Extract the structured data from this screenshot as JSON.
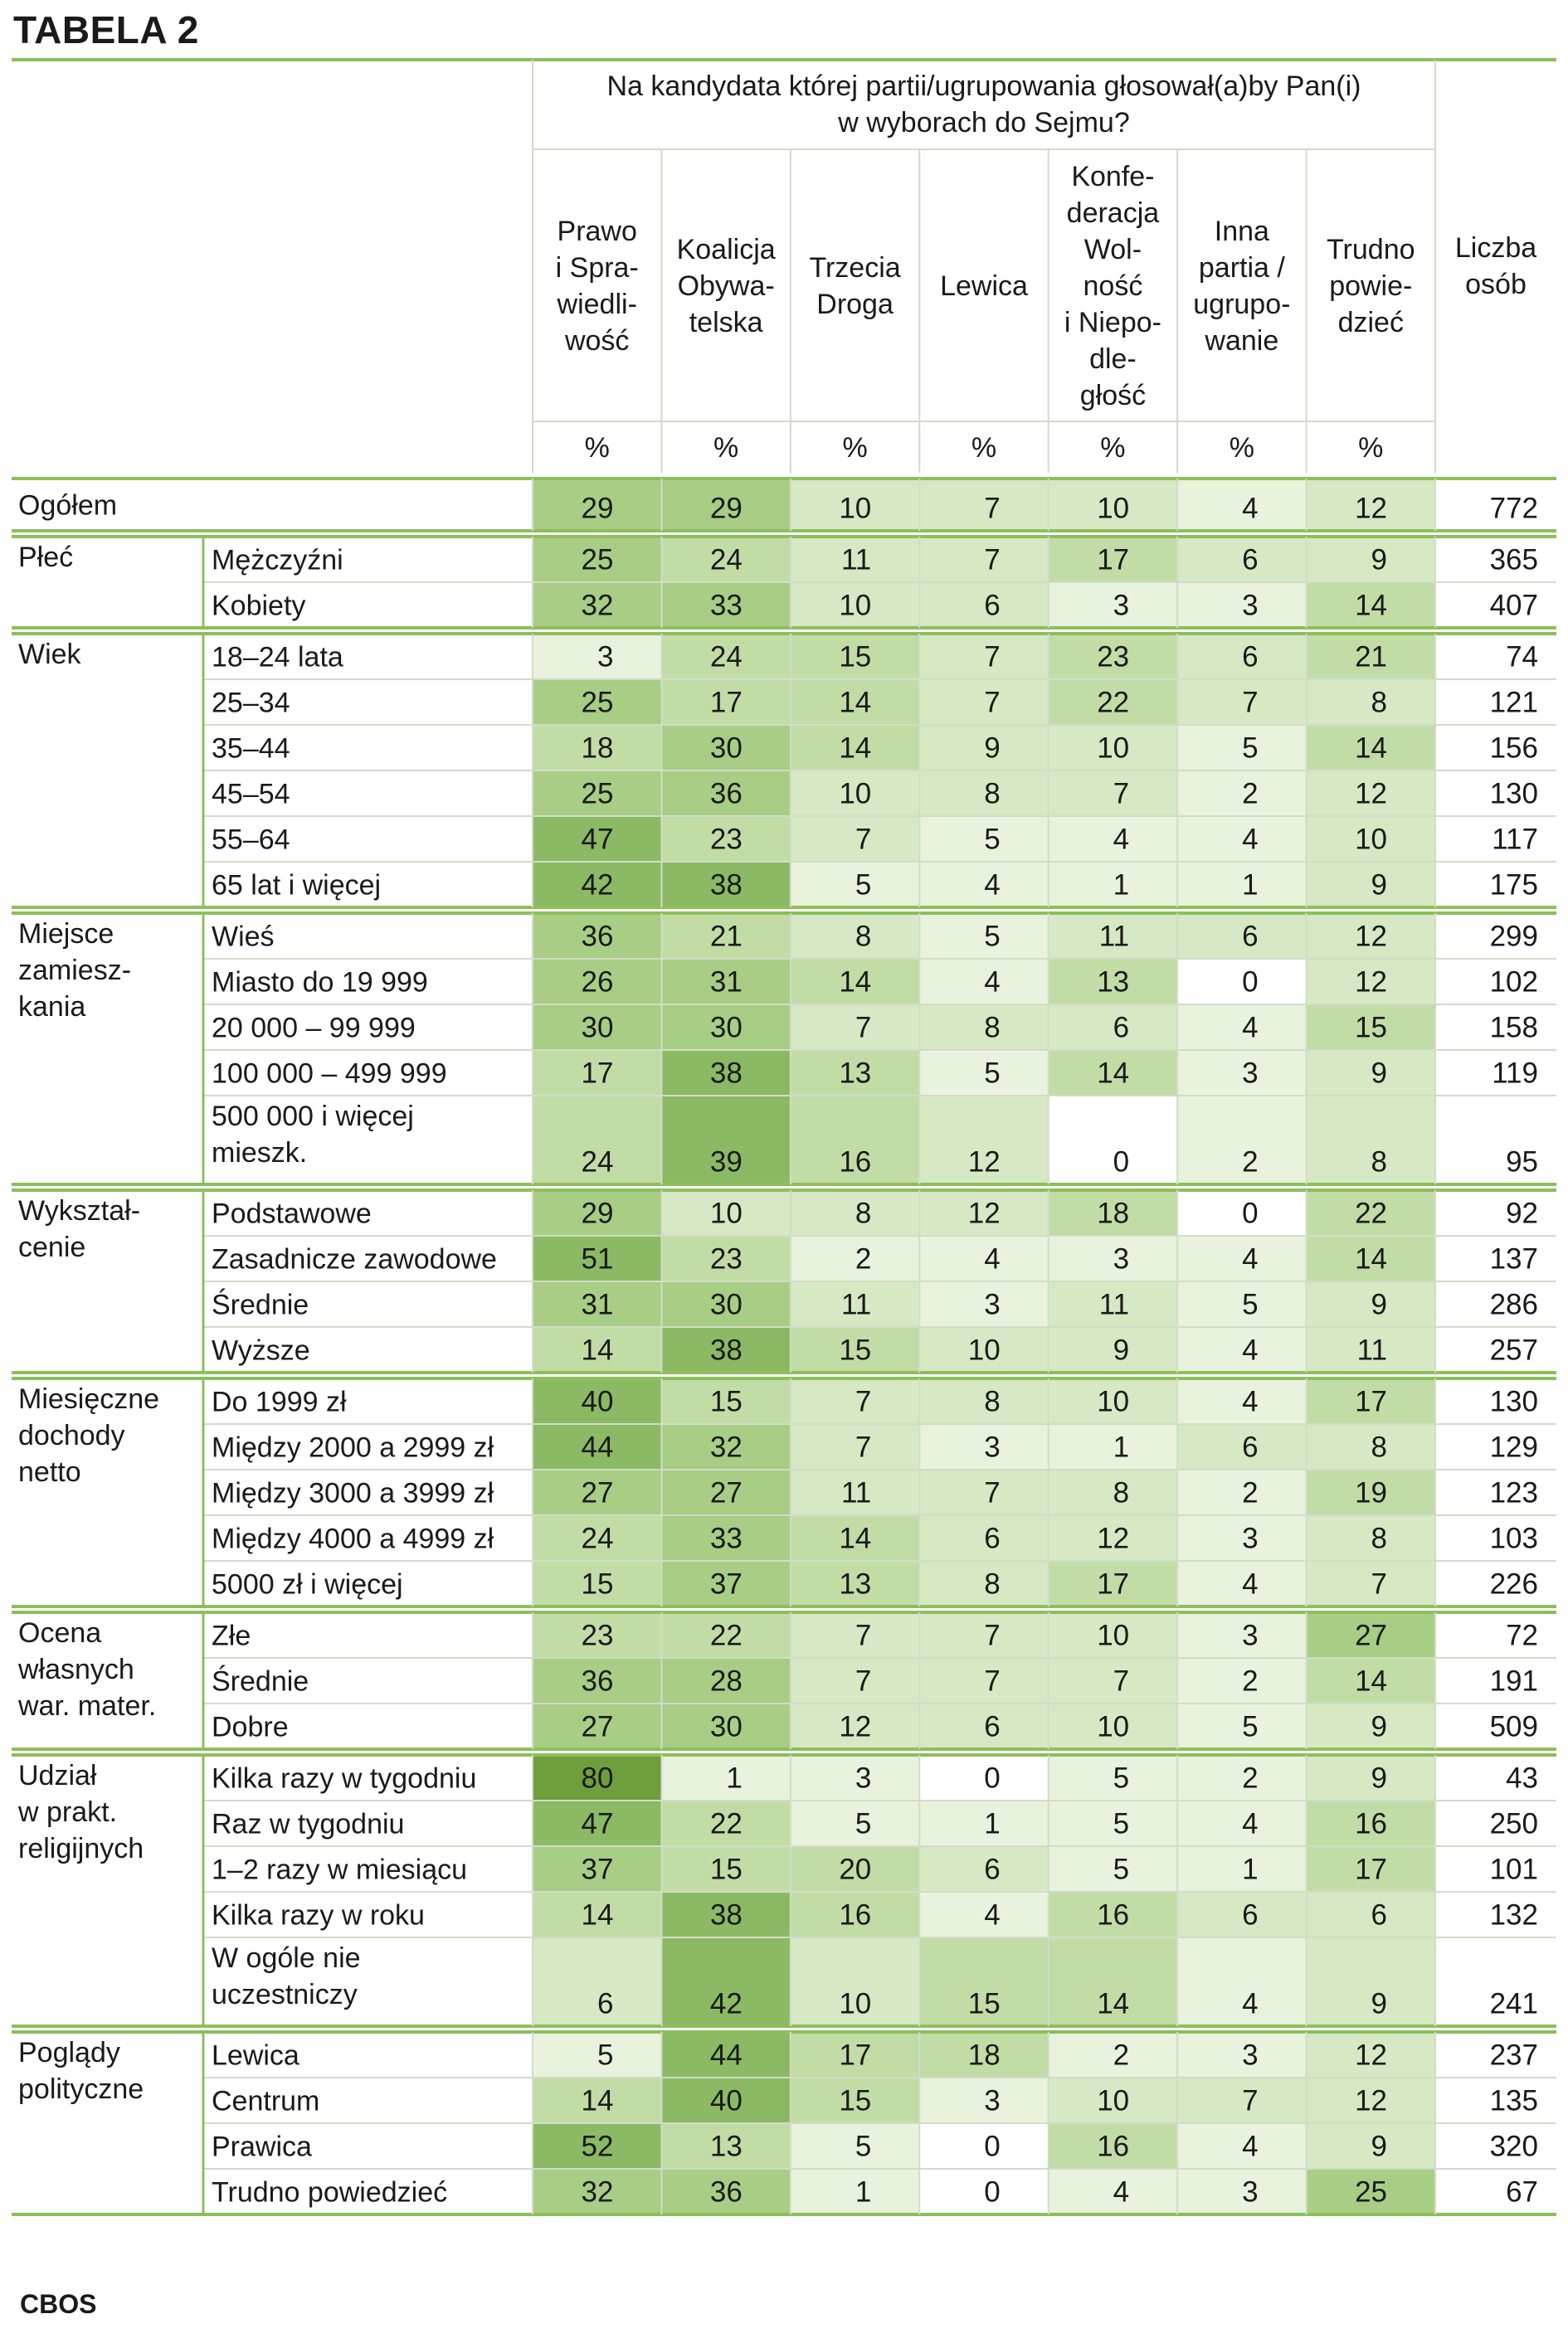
{
  "title": "TABELA 2",
  "source": "CBOS",
  "colors": {
    "rule": "#8cbf5a",
    "line": "#d2dcc8",
    "shade_scale": [
      "#ffffff",
      "#e8f2dc",
      "#d6e8c4",
      "#c2dca6",
      "#a8cd85",
      "#8cb964",
      "#6f9e3c"
    ]
  },
  "chart_data": {
    "type": "table",
    "question_lines": [
      "Na kandydata której partii/ugrupowania głosował(a)by Pan(i)",
      "w wyborach do Sejmu?"
    ],
    "columns": [
      {
        "lines": [
          "Prawo",
          "i Spra-",
          "wiedli-",
          "wość"
        ],
        "unit": "%"
      },
      {
        "lines": [
          "Koalicja",
          "Obywa-",
          "telska"
        ],
        "unit": "%"
      },
      {
        "lines": [
          "Trzecia",
          "Droga"
        ],
        "unit": "%"
      },
      {
        "lines": [
          "Lewica"
        ],
        "unit": "%"
      },
      {
        "lines": [
          "Konfe-",
          "deracja",
          "Wol-",
          "ność",
          "i Niepo-",
          "dle-",
          "głość"
        ],
        "unit": "%"
      },
      {
        "lines": [
          "Inna",
          "partia /",
          "ugrupo-",
          "wanie"
        ],
        "unit": "%"
      },
      {
        "lines": [
          "Trudno",
          "powie-",
          "dzieć"
        ],
        "unit": "%"
      }
    ],
    "count_header_lines": [
      "Liczba",
      "osób"
    ],
    "overall": {
      "label": "Ogółem",
      "values": [
        29,
        29,
        10,
        7,
        10,
        4,
        12
      ],
      "n": 772
    },
    "groups": [
      {
        "label_lines": [
          "Płeć"
        ],
        "rows": [
          {
            "label_lines": [
              "Mężczyźni"
            ],
            "values": [
              25,
              24,
              11,
              7,
              17,
              6,
              9
            ],
            "n": 365
          },
          {
            "label_lines": [
              "Kobiety"
            ],
            "values": [
              32,
              33,
              10,
              6,
              3,
              3,
              14
            ],
            "n": 407
          }
        ]
      },
      {
        "label_lines": [
          "Wiek"
        ],
        "rows": [
          {
            "label_lines": [
              "18–24 lata"
            ],
            "values": [
              3,
              24,
              15,
              7,
              23,
              6,
              21
            ],
            "n": 74
          },
          {
            "label_lines": [
              "25–34"
            ],
            "values": [
              25,
              17,
              14,
              7,
              22,
              7,
              8
            ],
            "n": 121
          },
          {
            "label_lines": [
              "35–44"
            ],
            "values": [
              18,
              30,
              14,
              9,
              10,
              5,
              14
            ],
            "n": 156
          },
          {
            "label_lines": [
              "45–54"
            ],
            "values": [
              25,
              36,
              10,
              8,
              7,
              2,
              12
            ],
            "n": 130
          },
          {
            "label_lines": [
              "55–64"
            ],
            "values": [
              47,
              23,
              7,
              5,
              4,
              4,
              10
            ],
            "n": 117
          },
          {
            "label_lines": [
              "65 lat i więcej"
            ],
            "values": [
              42,
              38,
              5,
              4,
              1,
              1,
              9
            ],
            "n": 175
          }
        ]
      },
      {
        "label_lines": [
          "Miejsce",
          "zamiesz-",
          "kania"
        ],
        "rows": [
          {
            "label_lines": [
              "Wieś"
            ],
            "values": [
              36,
              21,
              8,
              5,
              11,
              6,
              12
            ],
            "n": 299
          },
          {
            "label_lines": [
              "Miasto do 19 999"
            ],
            "values": [
              26,
              31,
              14,
              4,
              13,
              0,
              12
            ],
            "n": 102
          },
          {
            "label_lines": [
              "20 000 – 99 999"
            ],
            "values": [
              30,
              30,
              7,
              8,
              6,
              4,
              15
            ],
            "n": 158
          },
          {
            "label_lines": [
              "100 000 – 499 999"
            ],
            "values": [
              17,
              38,
              13,
              5,
              14,
              3,
              9
            ],
            "n": 119
          },
          {
            "label_lines": [
              "500 000 i więcej",
              "mieszk."
            ],
            "values": [
              24,
              39,
              16,
              12,
              0,
              2,
              8
            ],
            "n": 95
          }
        ]
      },
      {
        "label_lines": [
          "Wykształ-",
          "cenie"
        ],
        "rows": [
          {
            "label_lines": [
              "Podstawowe"
            ],
            "values": [
              29,
              10,
              8,
              12,
              18,
              0,
              22
            ],
            "n": 92
          },
          {
            "label_lines": [
              "Zasadnicze zawodowe"
            ],
            "values": [
              51,
              23,
              2,
              4,
              3,
              4,
              14
            ],
            "n": 137
          },
          {
            "label_lines": [
              "Średnie"
            ],
            "values": [
              31,
              30,
              11,
              3,
              11,
              5,
              9
            ],
            "n": 286
          },
          {
            "label_lines": [
              "Wyższe"
            ],
            "values": [
              14,
              38,
              15,
              10,
              9,
              4,
              11
            ],
            "n": 257
          }
        ]
      },
      {
        "label_lines": [
          "Miesięczne",
          "dochody",
          "netto"
        ],
        "rows": [
          {
            "label_lines": [
              "Do 1999 zł"
            ],
            "values": [
              40,
              15,
              7,
              8,
              10,
              4,
              17
            ],
            "n": 130
          },
          {
            "label_lines": [
              "Między 2000 a 2999 zł"
            ],
            "values": [
              44,
              32,
              7,
              3,
              1,
              6,
              8
            ],
            "n": 129
          },
          {
            "label_lines": [
              "Między 3000 a 3999 zł"
            ],
            "values": [
              27,
              27,
              11,
              7,
              8,
              2,
              19
            ],
            "n": 123
          },
          {
            "label_lines": [
              "Między 4000 a 4999 zł"
            ],
            "values": [
              24,
              33,
              14,
              6,
              12,
              3,
              8
            ],
            "n": 103
          },
          {
            "label_lines": [
              "5000 zł i więcej"
            ],
            "values": [
              15,
              37,
              13,
              8,
              17,
              4,
              7
            ],
            "n": 226
          }
        ]
      },
      {
        "label_lines": [
          "Ocena",
          "własnych",
          "war. mater."
        ],
        "rows": [
          {
            "label_lines": [
              "Złe"
            ],
            "values": [
              23,
              22,
              7,
              7,
              10,
              3,
              27
            ],
            "n": 72
          },
          {
            "label_lines": [
              "Średnie"
            ],
            "values": [
              36,
              28,
              7,
              7,
              7,
              2,
              14
            ],
            "n": 191
          },
          {
            "label_lines": [
              "Dobre"
            ],
            "values": [
              27,
              30,
              12,
              6,
              10,
              5,
              9
            ],
            "n": 509
          }
        ]
      },
      {
        "label_lines": [
          "Udział",
          "w prakt.",
          "religijnych"
        ],
        "rows": [
          {
            "label_lines": [
              "Kilka razy w tygodniu"
            ],
            "values": [
              80,
              1,
              3,
              0,
              5,
              2,
              9
            ],
            "n": 43
          },
          {
            "label_lines": [
              "Raz w tygodniu"
            ],
            "values": [
              47,
              22,
              5,
              1,
              5,
              4,
              16
            ],
            "n": 250
          },
          {
            "label_lines": [
              "1–2 razy w miesiącu"
            ],
            "values": [
              37,
              15,
              20,
              6,
              5,
              1,
              17
            ],
            "n": 101
          },
          {
            "label_lines": [
              "Kilka razy w roku"
            ],
            "values": [
              14,
              38,
              16,
              4,
              16,
              6,
              6
            ],
            "n": 132
          },
          {
            "label_lines": [
              "W ogóle nie",
              "uczestniczy"
            ],
            "values": [
              6,
              42,
              10,
              15,
              14,
              4,
              9
            ],
            "n": 241
          }
        ]
      },
      {
        "label_lines": [
          "Poglądy",
          "polityczne"
        ],
        "rows": [
          {
            "label_lines": [
              "Lewica"
            ],
            "values": [
              5,
              44,
              17,
              18,
              2,
              3,
              12
            ],
            "n": 237
          },
          {
            "label_lines": [
              "Centrum"
            ],
            "values": [
              14,
              40,
              15,
              3,
              10,
              7,
              12
            ],
            "n": 135
          },
          {
            "label_lines": [
              "Prawica"
            ],
            "values": [
              52,
              13,
              5,
              0,
              16,
              4,
              9
            ],
            "n": 320
          },
          {
            "label_lines": [
              "Trudno powiedzieć"
            ],
            "values": [
              32,
              36,
              1,
              0,
              4,
              3,
              25
            ],
            "n": 67
          }
        ]
      }
    ]
  }
}
